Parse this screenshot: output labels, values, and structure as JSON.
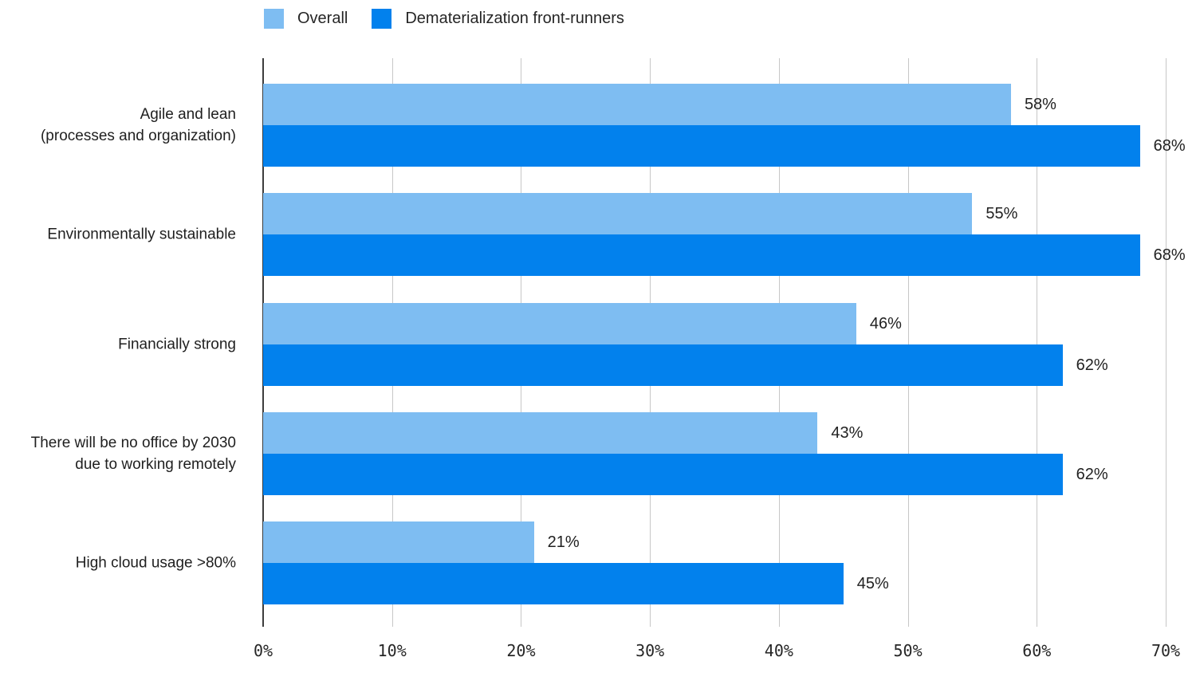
{
  "chart_data": {
    "type": "bar",
    "orientation": "horizontal",
    "title": "",
    "xlabel": "",
    "ylabel": "",
    "categories": [
      "Agile and lean\n(processes and organization)",
      "Environmentally sustainable",
      "Financially strong",
      "There will be no office by 2030\ndue to working remotely",
      "High cloud usage >80%"
    ],
    "series": [
      {
        "name": "Overall",
        "color": "#7EBDF2",
        "values": [
          58,
          55,
          46,
          43,
          21
        ]
      },
      {
        "name": "Dematerialization front-runners",
        "color": "#0281ED",
        "values": [
          68,
          68,
          62,
          62,
          45
        ]
      }
    ],
    "value_suffix": "%",
    "xlim": [
      0,
      70
    ],
    "x_tick_values": [
      0,
      10,
      20,
      30,
      40,
      50,
      60,
      70
    ],
    "x_tick_labels": [
      "0%",
      "10%",
      "20%",
      "30%",
      "40%",
      "50%",
      "60%",
      "70%"
    ],
    "legend_position": "top",
    "grid": "vertical-only",
    "colors": {
      "gridline": "#C7C7C7",
      "zero_axis": "#3D3D3D",
      "text": "#212121"
    }
  }
}
